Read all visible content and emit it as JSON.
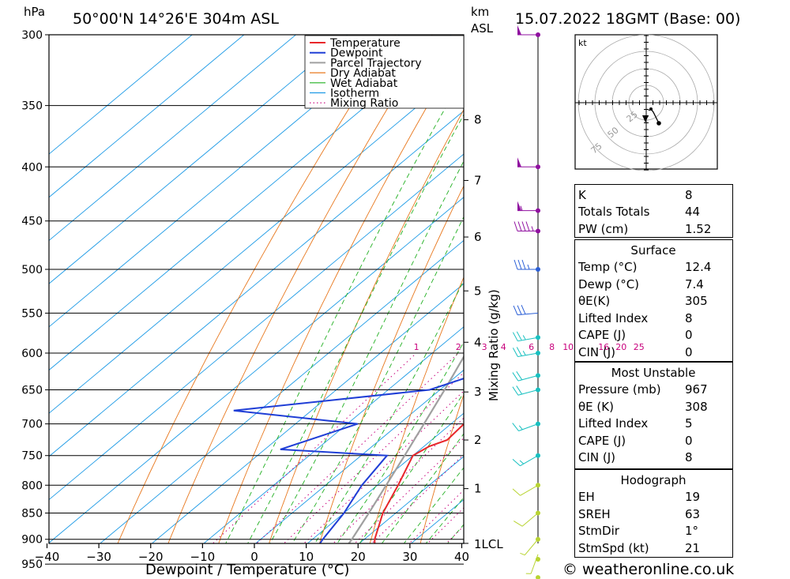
{
  "header": {
    "units_left": "hPa",
    "location": "50°00'N  14°26'E  304m  ASL",
    "units_right_1": "km",
    "units_right_2": "ASL",
    "datetime": "15.07.2022  18GMT  (Base: 00)"
  },
  "footer": "© weatheronline.co.uk",
  "hodograph": {
    "unit": "kt",
    "rings": [
      "25",
      "50",
      "75"
    ]
  },
  "colors": {
    "temperature": "#e8262a",
    "dewpoint": "#1f3ed6",
    "parcel": "#a0a0a0",
    "dry_adiabat": "#e8781e",
    "wet_adiabat": "#22b022",
    "isotherm": "#1e9be6",
    "mixing_ratio": "#c8007c"
  },
  "chart_data": {
    "type": "skew-t",
    "xlabel": "Dewpoint / Temperature (°C)",
    "ylabel_left": "hPa",
    "ylabel_right": "Mixing Ratio (g/kg)",
    "x_ticks": [
      "−40",
      "−30",
      "−20",
      "−10",
      "0",
      "10",
      "20",
      "30",
      "40"
    ],
    "pressure_levels": [
      300,
      350,
      400,
      450,
      500,
      550,
      600,
      650,
      700,
      750,
      800,
      850,
      900,
      950
    ],
    "height_km_labels": [
      "8",
      "7",
      "6",
      "5",
      "4",
      "3",
      "2",
      "1"
    ],
    "lcl_label": "LCL",
    "mixing_ratio_labels": [
      "1",
      "2",
      "3",
      "4",
      "6",
      "8",
      "10",
      "16",
      "20",
      "25"
    ],
    "legend": [
      "Temperature",
      "Dewpoint",
      "Parcel Trajectory",
      "Dry Adiabat",
      "Wet Adiabat",
      "Isotherm",
      "Mixing Ratio"
    ],
    "temperature_profile": [
      [
        978,
        12.4
      ],
      [
        960,
        19
      ],
      [
        930,
        15.5
      ],
      [
        900,
        12
      ],
      [
        850,
        7.5
      ],
      [
        800,
        4
      ],
      [
        750,
        0
      ],
      [
        735,
        1
      ],
      [
        725,
        3
      ],
      [
        700,
        2.5
      ],
      [
        650,
        1
      ],
      [
        620,
        0
      ],
      [
        600,
        -2.5
      ],
      [
        550,
        -6.5
      ],
      [
        500,
        -12
      ],
      [
        470,
        -14.5
      ],
      [
        450,
        -15.5
      ],
      [
        430,
        -16
      ],
      [
        400,
        -20
      ],
      [
        380,
        -22
      ],
      [
        350,
        -29
      ],
      [
        320,
        -35
      ],
      [
        300,
        -38
      ]
    ],
    "dewpoint_profile": [
      [
        978,
        7.4
      ],
      [
        960,
        5
      ],
      [
        900,
        2
      ],
      [
        850,
        0
      ],
      [
        800,
        -3
      ],
      [
        750,
        -5
      ],
      [
        740,
        -27
      ],
      [
        700,
        -18
      ],
      [
        680,
        -45
      ],
      [
        650,
        -12
      ],
      [
        630,
        -7
      ],
      [
        600,
        -11
      ],
      [
        550,
        -14
      ],
      [
        520,
        -22
      ],
      [
        505,
        -17
      ],
      [
        500,
        -21
      ],
      [
        470,
        -20
      ],
      [
        465,
        -24
      ],
      [
        462,
        -21
      ],
      [
        455,
        -22
      ],
      [
        450,
        -19
      ],
      [
        440,
        -33
      ],
      [
        410,
        -45
      ],
      [
        400,
        -37
      ],
      [
        380,
        -41
      ],
      [
        350,
        -42
      ],
      [
        320,
        -43
      ],
      [
        300,
        -45
      ]
    ],
    "parcel_profile": [
      [
        978,
        12.4
      ],
      [
        930,
        9
      ],
      [
        900,
        7.6
      ],
      [
        850,
        4.8
      ],
      [
        800,
        1.7
      ],
      [
        750,
        -1.6
      ],
      [
        700,
        -5.2
      ],
      [
        650,
        -9.1
      ],
      [
        600,
        -13.5
      ],
      [
        550,
        -18.5
      ],
      [
        500,
        -24
      ],
      [
        450,
        -30.5
      ],
      [
        400,
        -37.5
      ],
      [
        350,
        -45.5
      ],
      [
        300,
        -54.5
      ]
    ],
    "wind_profile_kt": [
      [
        978,
        4,
        180
      ],
      [
        930,
        6,
        200
      ],
      [
        900,
        8,
        220
      ],
      [
        850,
        10,
        230
      ],
      [
        800,
        12,
        240
      ],
      [
        750,
        15,
        240
      ],
      [
        700,
        18,
        250
      ],
      [
        650,
        22,
        255
      ],
      [
        630,
        22,
        255
      ],
      [
        600,
        25,
        260
      ],
      [
        580,
        28,
        260
      ],
      [
        550,
        30,
        265
      ],
      [
        500,
        38,
        270
      ],
      [
        460,
        45,
        270
      ],
      [
        440,
        55,
        270
      ],
      [
        400,
        50,
        270
      ],
      [
        300,
        50,
        270
      ]
    ]
  },
  "indices": {
    "rows": [
      {
        "label": "K",
        "value": "8"
      },
      {
        "label": "Totals Totals",
        "value": "44"
      },
      {
        "label": "PW (cm)",
        "value": "1.52"
      }
    ],
    "surface": {
      "title": "Surface",
      "rows": [
        {
          "label": "Temp (°C)",
          "value": "12.4"
        },
        {
          "label": "Dewp (°C)",
          "value": "7.4"
        },
        {
          "label": "θE(K)",
          "value": "305"
        },
        {
          "label": "Lifted Index",
          "value": "8"
        },
        {
          "label": "CAPE (J)",
          "value": "0"
        },
        {
          "label": "CIN (J)",
          "value": "0"
        }
      ]
    },
    "most_unstable": {
      "title": "Most Unstable",
      "rows": [
        {
          "label": "Pressure (mb)",
          "value": "967"
        },
        {
          "label": "θE (K)",
          "value": "308"
        },
        {
          "label": "Lifted Index",
          "value": "5"
        },
        {
          "label": "CAPE (J)",
          "value": "0"
        },
        {
          "label": "CIN (J)",
          "value": "8"
        }
      ]
    },
    "hodograph": {
      "title": "Hodograph",
      "rows": [
        {
          "label": "EH",
          "value": "19"
        },
        {
          "label": "SREH",
          "value": "63"
        },
        {
          "label": "StmDir",
          "value": "1°"
        },
        {
          "label": "StmSpd (kt)",
          "value": "21"
        }
      ]
    }
  }
}
